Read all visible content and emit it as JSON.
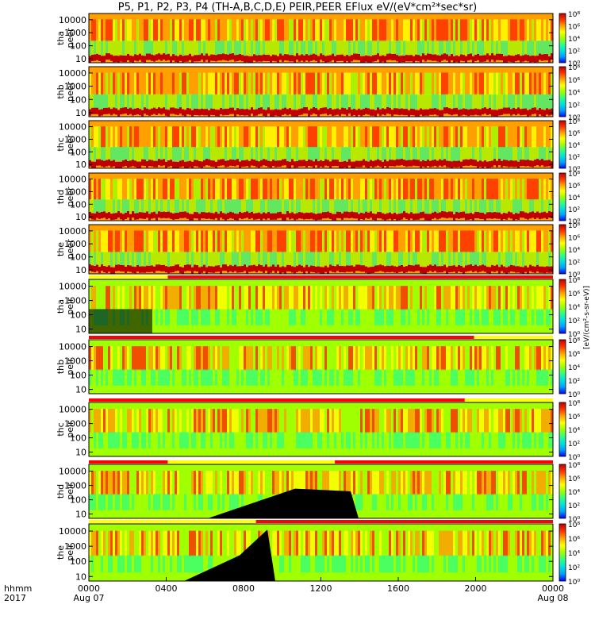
{
  "chart_data": {
    "type": "heatmap",
    "title": "P5, P1, P2, P3, P4 (TH-A,B,C,D,E) PEIR,PEER EFlux eV/(eV*cm²*sec*sr)",
    "colorbar_label": "[eV/(cm²-s-sr-eV)]",
    "colorbar_ticks": [
      "10⁸",
      "10⁶",
      "10⁴",
      "10²",
      "10⁰"
    ],
    "y_ticks": [
      "10000",
      "1000",
      "100",
      "10"
    ],
    "ylim": [
      5,
      30000
    ],
    "yscale": "log",
    "x_ticks": [
      "0000",
      "0400",
      "0800",
      "1200",
      "1600",
      "2000",
      "0000"
    ],
    "x_date_labels": [
      "Aug 07",
      "Aug 08"
    ],
    "x_axis_row_labels": [
      "hhmm",
      "2017"
    ],
    "xlim": [
      "2017-08-07 00:00",
      "2017-08-08 00:00"
    ],
    "panels": [
      {
        "label": [
          "tha",
          "peer"
        ]
      },
      {
        "label": [
          "thb",
          "peer"
        ]
      },
      {
        "label": [
          "thc",
          "peer"
        ]
      },
      {
        "label": [
          "thd",
          "peer"
        ]
      },
      {
        "label": [
          "the",
          "peer"
        ]
      },
      {
        "label": [
          "tha",
          "peir"
        ]
      },
      {
        "label": [
          "thb",
          "peir"
        ]
      },
      {
        "label": [
          "thc",
          "peir"
        ]
      },
      {
        "label": [
          "thd",
          "peir"
        ]
      },
      {
        "label": [
          "the",
          "peir"
        ]
      }
    ],
    "colors": {
      "scale": [
        "#0000ff",
        "#00a0ff",
        "#00e0e0",
        "#30ff80",
        "#a0ff00",
        "#ffff00",
        "#ffa000",
        "#ff3000",
        "#c00000"
      ],
      "low_count": "#000000",
      "mode_bar_red": "#ff0000",
      "mode_bar_yellow": "#ffff00"
    }
  }
}
